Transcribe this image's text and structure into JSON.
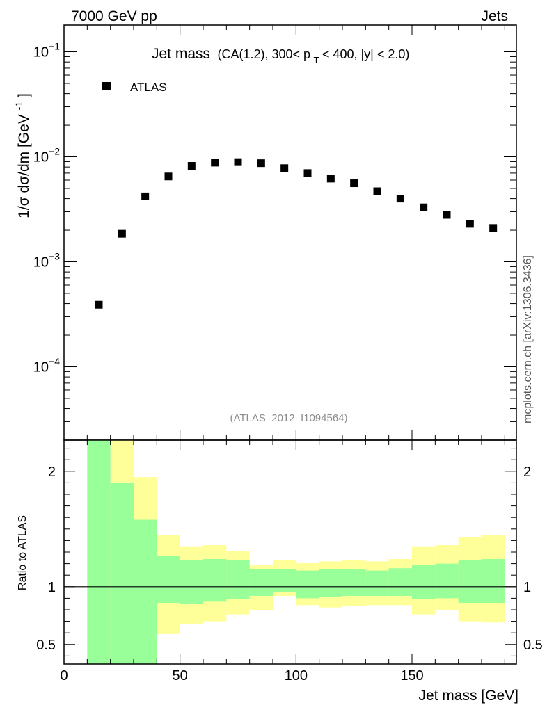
{
  "header": {
    "left": "7000 GeV pp",
    "right": "Jets"
  },
  "side_label": "mcplots.cern.ch [arXiv:1306.3436]",
  "colors": {
    "band_inner": "#99ff99",
    "band_outer": "#ffff99",
    "marker": "#000000"
  },
  "chart_data": {
    "type": "scatter",
    "title_main": "Jet mass",
    "title_detail_a": "(CA(1.2), 300< p",
    "title_detail_sub": "T",
    "title_detail_b": " < 400, |y| < 2.0)",
    "analysis_id": "(ATLAS_2012_I1094564)",
    "legend": [
      "ATLAS"
    ],
    "xlabel": "Jet mass [GeV]",
    "ylabel_main": "1/σ dσ/dm [GeV",
    "ylabel_sup": "-1",
    "ylabel_end": "]",
    "ylabel_ratio": "Ratio to ATLAS",
    "xlim": [
      0,
      195
    ],
    "ylim_main": [
      2e-05,
      0.18
    ],
    "ylim_ratio": [
      0.33,
      2.27
    ],
    "xticks": [
      0,
      50,
      100,
      150
    ],
    "xtick_labels": [
      "0",
      "50",
      "100",
      "150"
    ],
    "yticks_main": [
      0.1,
      0.01,
      0.001,
      0.0001
    ],
    "ytick_labels_main": [
      {
        "base": "10",
        "exp": "−1"
      },
      {
        "base": "10",
        "exp": "−2"
      },
      {
        "base": "10",
        "exp": "−3"
      },
      {
        "base": "10",
        "exp": "−4"
      }
    ],
    "yticks_ratio": [
      2,
      1,
      0.5
    ],
    "ytick_labels_ratio": [
      "2",
      "1",
      "0.5"
    ],
    "series": [
      {
        "name": "ATLAS",
        "x": [
          15,
          25,
          35,
          45,
          55,
          65,
          75,
          85,
          95,
          105,
          115,
          125,
          135,
          145,
          155,
          165,
          175,
          185
        ],
        "y": [
          0.00039,
          0.00185,
          0.0042,
          0.0065,
          0.0082,
          0.0088,
          0.0089,
          0.0087,
          0.0078,
          0.007,
          0.0062,
          0.0056,
          0.0047,
          0.004,
          0.0033,
          0.0028,
          0.0023,
          0.0021
        ]
      }
    ],
    "ratio_bands": {
      "bin_edges": [
        10,
        20,
        30,
        40,
        50,
        60,
        70,
        80,
        90,
        100,
        110,
        120,
        130,
        140,
        150,
        160,
        170,
        180,
        190
      ],
      "inner_low": [
        0.33,
        0.33,
        0.33,
        0.86,
        0.85,
        0.87,
        0.89,
        0.92,
        0.95,
        0.9,
        0.91,
        0.92,
        0.92,
        0.92,
        0.89,
        0.9,
        0.86,
        0.86
      ],
      "inner_high": [
        2.27,
        1.9,
        1.58,
        1.27,
        1.23,
        1.24,
        1.23,
        1.15,
        1.15,
        1.14,
        1.15,
        1.15,
        1.14,
        1.16,
        1.19,
        1.2,
        1.23,
        1.24
      ],
      "outer_low": [
        0.33,
        0.35,
        0.64,
        0.59,
        0.68,
        0.7,
        0.76,
        0.8,
        0.92,
        0.84,
        0.82,
        0.83,
        0.84,
        0.84,
        0.76,
        0.8,
        0.7,
        0.69
      ],
      "outer_high": [
        2.27,
        2.27,
        1.95,
        1.45,
        1.35,
        1.36,
        1.31,
        1.19,
        1.23,
        1.21,
        1.22,
        1.23,
        1.22,
        1.24,
        1.35,
        1.36,
        1.43,
        1.45
      ]
    }
  }
}
